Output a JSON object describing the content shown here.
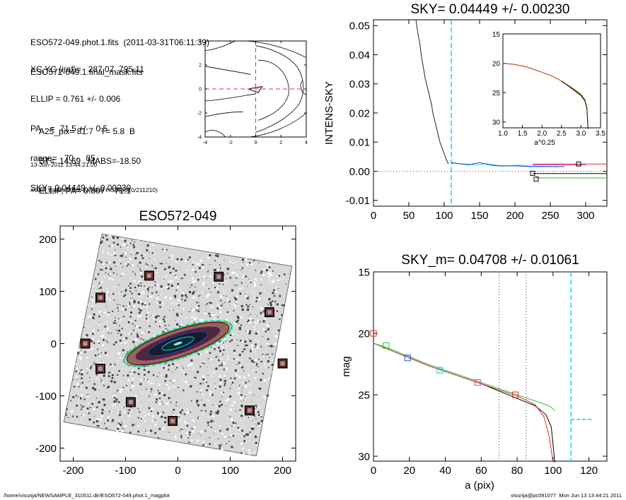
{
  "header": {
    "lines_a": [
      "ESO572-049.phot.1.fits  (2011-03-31T06:11:39)",
      "ESO572-049.1.final_mask.fits"
    ],
    "lines_b": [
      "XC,YC (iraf)=   287.07, 795.11",
      "ELLIP = 0.761 +/- 0.006",
      "PA    =  71.5 +/-   0.5",
      "range=   70.-   85.",
      "SKY= 0.04449 +/- 0.00230"
    ],
    "lines_c": [
      "A25_pix= 81.7   T= 5.8  B",
      "BT=  14.69   MABS=-18.50",
      "ELLIP, PA= 0.807    71.1"
    ],
    "lines_d": [
      "13-Jun-2011 13:44:21.00",
      "make_datalist0.pro (version HS230610/211210)"
    ]
  },
  "footer": {
    "left": "/home/visurija/NEWSAMPLE_310511.dir/ESO572-049.phot.1_magplot",
    "right": "visurija@pc091077  Mon Jun 13 13:44:21 2011"
  },
  "colors": {
    "cyan": "#00d8e8",
    "red": "#e03030",
    "green": "#30c030",
    "blue": "#2040e0",
    "pink": "#e030c0",
    "maroon": "#7a0000"
  },
  "chart_data": [
    {
      "id": "contour",
      "type": "contour",
      "xlim": [
        -4,
        4
      ],
      "ylim": [
        -4,
        4
      ],
      "xticks": [
        "-4",
        "-2",
        "0",
        "2",
        "4"
      ],
      "yticks": [
        "-4",
        "-2",
        "0",
        "2",
        "4"
      ]
    },
    {
      "id": "sky",
      "type": "line",
      "title": "SKY= 0.04449 +/- 0.00230",
      "ylabel": "INTENS-SKY",
      "xlim": [
        0,
        330
      ],
      "ylim": [
        -0.012,
        0.052
      ],
      "xticks": [
        "0",
        "50",
        "100",
        "150",
        "200",
        "250",
        "300"
      ],
      "yticks": [
        "-0.01",
        "0.00",
        "0.01",
        "0.02",
        "0.03",
        "0.04",
        "0.05"
      ],
      "profile": {
        "x": [
          60,
          63,
          66,
          68,
          71,
          73,
          76,
          79,
          82,
          84,
          87,
          89,
          92,
          94,
          97,
          100,
          103,
          106
        ],
        "y": [
          0.052,
          0.047,
          0.043,
          0.039,
          0.035,
          0.032,
          0.029,
          0.026,
          0.023,
          0.02,
          0.017,
          0.015,
          0.012,
          0.01,
          0.008,
          0.006,
          0.004,
          0.0025
        ]
      },
      "sky_series": [
        {
          "color": "cyan",
          "x": [
            110,
            130,
            145,
            160,
            175,
            190,
            205,
            220,
            240,
            260
          ],
          "y": [
            0.0028,
            0.0025,
            0.0022,
            0.0026,
            0.002,
            0.0019,
            0.0021,
            0.0018,
            0.0017,
            0.0015
          ]
        },
        {
          "color": "blue",
          "x": [
            110,
            120,
            135,
            150,
            165,
            180,
            200,
            220,
            245,
            270
          ],
          "y": [
            0.003,
            0.0026,
            0.0022,
            0.003,
            0.0021,
            0.0018,
            0.0019,
            0.0016,
            0.0016,
            0.0016
          ]
        },
        {
          "color": "pink",
          "x": [
            225,
            250,
            275,
            300
          ],
          "y": [
            0.0022,
            0.0022,
            0.0022,
            0.0022
          ]
        },
        {
          "color": "red",
          "x": [
            225,
            290,
            330
          ],
          "y": [
            0.0025,
            0.0025,
            0.0025
          ]
        },
        {
          "color": "black",
          "x": [
            225,
            330
          ],
          "y": [
            -0.0008,
            -0.0008
          ]
        },
        {
          "color": "green",
          "x": [
            230,
            330
          ],
          "y": [
            -0.0023,
            -0.0023
          ]
        }
      ],
      "markers": [
        {
          "x": 290,
          "y": 0.0025
        },
        {
          "x": 225,
          "y": -0.0007
        },
        {
          "x": 230,
          "y": -0.0027
        }
      ],
      "vline": 110,
      "inset": {
        "xlabel": "a^0.25",
        "xlim": [
          1.0,
          3.5
        ],
        "ylim": [
          15,
          31
        ],
        "xticks": [
          "1.0",
          "1.5",
          "2.0",
          "2.5",
          "3.0",
          "3.5"
        ],
        "yticks": [
          "15",
          "20",
          "25",
          "30"
        ],
        "curve": {
          "x": [
            1.0,
            1.3,
            1.6,
            1.9,
            2.2,
            2.5,
            2.8,
            3.0,
            3.1,
            3.15,
            3.18
          ],
          "y": [
            20.0,
            20.2,
            20.6,
            21.3,
            22.0,
            23.0,
            24.3,
            25.3,
            26.2,
            27.5,
            31
          ]
        }
      }
    },
    {
      "id": "image",
      "type": "image",
      "title": "ESO572-049",
      "xlim": [
        -225,
        225
      ],
      "ylim": [
        -225,
        225
      ],
      "xticks": [
        "-200",
        "-100",
        "0",
        "100",
        "200"
      ],
      "yticks": [
        "-200",
        "-100",
        "0",
        "100",
        "200"
      ],
      "galaxy": {
        "x": 0,
        "y": 0,
        "semi_major": 107,
        "ellip": 0.761,
        "pa": 71.5
      },
      "masks": [
        {
          "x": -55,
          "y": 130
        },
        {
          "x": 78,
          "y": 128
        },
        {
          "x": -148,
          "y": 88
        },
        {
          "x": 175,
          "y": 60
        },
        {
          "x": -177,
          "y": 0
        },
        {
          "x": 200,
          "y": -38
        },
        {
          "x": -148,
          "y": -48
        },
        {
          "x": -90,
          "y": -112
        },
        {
          "x": 137,
          "y": -128
        },
        {
          "x": -10,
          "y": -148
        }
      ]
    },
    {
      "id": "mag",
      "type": "line",
      "title": "SKY_m=  0.04708 +/- 0.01061",
      "xlabel": "a (pix)",
      "ylabel": "mag",
      "xlim": [
        0,
        130
      ],
      "ylim": [
        15,
        30.4
      ],
      "xticks": [
        "0",
        "20",
        "40",
        "60",
        "80",
        "100",
        "120"
      ],
      "yticks": [
        "15",
        "20",
        "25",
        "30"
      ],
      "series": [
        {
          "color": "black",
          "x": [
            0,
            10,
            20,
            30,
            40,
            50,
            60,
            70,
            80,
            90,
            96,
            99,
            101
          ],
          "y": [
            20.8,
            21.4,
            22.0,
            22.6,
            23.1,
            23.6,
            24.1,
            24.7,
            25.3,
            25.9,
            26.6,
            27.6,
            30.5
          ]
        },
        {
          "color": "red",
          "x": [
            0,
            10,
            20,
            30,
            40,
            50,
            60,
            70,
            80,
            90,
            95,
            98,
            100
          ],
          "y": [
            20.8,
            21.4,
            22.0,
            22.6,
            23.1,
            23.6,
            24.1,
            24.6,
            25.1,
            25.8,
            26.8,
            28.5,
            30.5
          ]
        },
        {
          "color": "green",
          "x": [
            0,
            10,
            20,
            30,
            40,
            50,
            60,
            70,
            80,
            90,
            96,
            99,
            101
          ],
          "y": [
            20.8,
            21.3,
            21.9,
            22.5,
            23.0,
            23.5,
            24.0,
            24.5,
            25.0,
            25.5,
            25.8,
            26.0,
            26.3
          ]
        }
      ],
      "markers": [
        {
          "x": 0,
          "y": 20.0,
          "color": "red"
        },
        {
          "x": 7,
          "y": 21.0,
          "color": "green"
        },
        {
          "x": 19,
          "y": 22.0,
          "color": "blue"
        },
        {
          "x": 37,
          "y": 23.0,
          "color": "cyan"
        },
        {
          "x": 58,
          "y": 24.0,
          "color": "pink"
        },
        {
          "x": 79,
          "y": 25.0,
          "color": "red"
        }
      ],
      "dotted_vlines": [
        70,
        85
      ],
      "vline": 110,
      "sky_segment": {
        "x": [
          110,
          122
        ],
        "y": 27.0
      }
    }
  ]
}
